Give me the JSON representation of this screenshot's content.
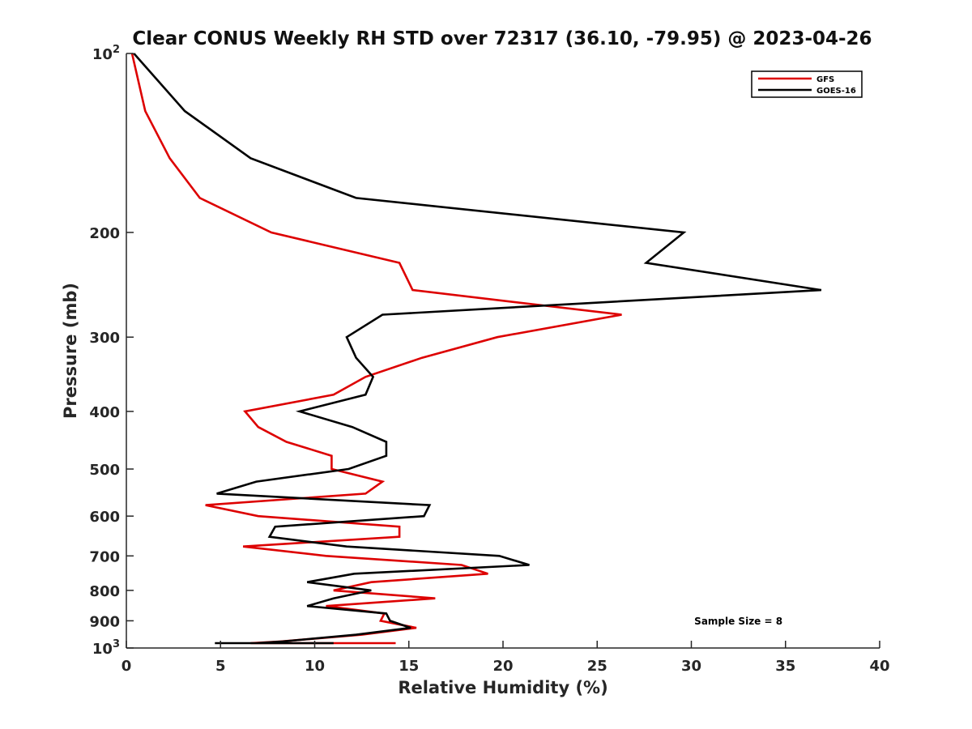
{
  "chart_data": {
    "type": "line",
    "title": "Clear CONUS Weekly RH STD over 72317 (36.10, -79.95) @ 2023-04-26",
    "xlabel": "Relative Humidity (%)",
    "ylabel": "Pressure (mb)",
    "xlim": [
      0,
      40
    ],
    "ylim": [
      100,
      1000
    ],
    "y_scale": "log",
    "y_reversed": true,
    "grid": false,
    "legend_position": "top-right",
    "x_ticks": [
      {
        "value": 0,
        "label": "0"
      },
      {
        "value": 5,
        "label": "5"
      },
      {
        "value": 10,
        "label": "10"
      },
      {
        "value": 15,
        "label": "15"
      },
      {
        "value": 20,
        "label": "20"
      },
      {
        "value": 25,
        "label": "25"
      },
      {
        "value": 30,
        "label": "30"
      },
      {
        "value": 35,
        "label": "35"
      },
      {
        "value": 40,
        "label": "40"
      }
    ],
    "y_ticks": [
      {
        "value": 100,
        "label": "10",
        "sup": "2"
      },
      {
        "value": 200,
        "label": "200",
        "sup": ""
      },
      {
        "value": 300,
        "label": "300",
        "sup": ""
      },
      {
        "value": 400,
        "label": "400",
        "sup": ""
      },
      {
        "value": 500,
        "label": "500",
        "sup": ""
      },
      {
        "value": 600,
        "label": "600",
        "sup": ""
      },
      {
        "value": 700,
        "label": "700",
        "sup": ""
      },
      {
        "value": 800,
        "label": "800",
        "sup": ""
      },
      {
        "value": 900,
        "label": "900",
        "sup": ""
      },
      {
        "value": 1000,
        "label": "10",
        "sup": "3"
      }
    ],
    "series": [
      {
        "name": "GFS",
        "color": "#dd0000",
        "points": [
          [
            0.3,
            100
          ],
          [
            1.0,
            125
          ],
          [
            2.3,
            150
          ],
          [
            3.9,
            175
          ],
          [
            7.7,
            200
          ],
          [
            14.5,
            225
          ],
          [
            15.2,
            250
          ],
          [
            26.3,
            275
          ],
          [
            19.7,
            300
          ],
          [
            15.7,
            325
          ],
          [
            12.7,
            350
          ],
          [
            11.0,
            375
          ],
          [
            6.3,
            400
          ],
          [
            7.0,
            425
          ],
          [
            8.5,
            450
          ],
          [
            10.9,
            475
          ],
          [
            10.9,
            500
          ],
          [
            13.6,
            525
          ],
          [
            12.7,
            550
          ],
          [
            4.2,
            575
          ],
          [
            7.0,
            600
          ],
          [
            14.5,
            625
          ],
          [
            14.5,
            650
          ],
          [
            6.2,
            675
          ],
          [
            10.6,
            700
          ],
          [
            17.8,
            725
          ],
          [
            19.2,
            750
          ],
          [
            13.0,
            775
          ],
          [
            11.0,
            800
          ],
          [
            16.4,
            825
          ],
          [
            10.6,
            850
          ],
          [
            13.7,
            875
          ],
          [
            13.5,
            900
          ],
          [
            15.4,
            925
          ],
          [
            12.5,
            950
          ],
          [
            8.2,
            975
          ],
          [
            6.6,
            1000
          ],
          [
            6.8,
            1025
          ],
          [
            14.3,
            1050
          ]
        ]
      },
      {
        "name": "GOES-16",
        "color": "#000000",
        "points": [
          [
            0.4,
            100
          ],
          [
            3.1,
            125
          ],
          [
            6.6,
            150
          ],
          [
            12.2,
            175
          ],
          [
            29.6,
            200
          ],
          [
            27.6,
            225
          ],
          [
            36.9,
            250
          ],
          [
            13.6,
            275
          ],
          [
            11.7,
            300
          ],
          [
            12.2,
            325
          ],
          [
            13.1,
            350
          ],
          [
            12.7,
            375
          ],
          [
            9.2,
            400
          ],
          [
            12.0,
            425
          ],
          [
            13.8,
            450
          ],
          [
            13.8,
            475
          ],
          [
            11.8,
            500
          ],
          [
            6.9,
            525
          ],
          [
            4.8,
            550
          ],
          [
            16.1,
            575
          ],
          [
            15.8,
            600
          ],
          [
            7.9,
            625
          ],
          [
            7.6,
            650
          ],
          [
            11.7,
            675
          ],
          [
            19.8,
            700
          ],
          [
            21.4,
            725
          ],
          [
            12.1,
            750
          ],
          [
            9.6,
            775
          ],
          [
            13.0,
            800
          ],
          [
            11.0,
            825
          ],
          [
            9.6,
            850
          ],
          [
            13.8,
            875
          ],
          [
            14.0,
            900
          ],
          [
            15.1,
            925
          ],
          [
            12.2,
            950
          ],
          [
            8.3,
            975
          ],
          [
            6.9,
            1000
          ],
          [
            6.6,
            1025
          ],
          [
            9.7,
            1050
          ],
          [
            4.7,
            1075
          ],
          [
            11.0,
            1100
          ]
        ]
      }
    ],
    "annotations": [
      {
        "text": "Sample Size = 8",
        "x": 32.5,
        "y": 1010
      }
    ]
  }
}
